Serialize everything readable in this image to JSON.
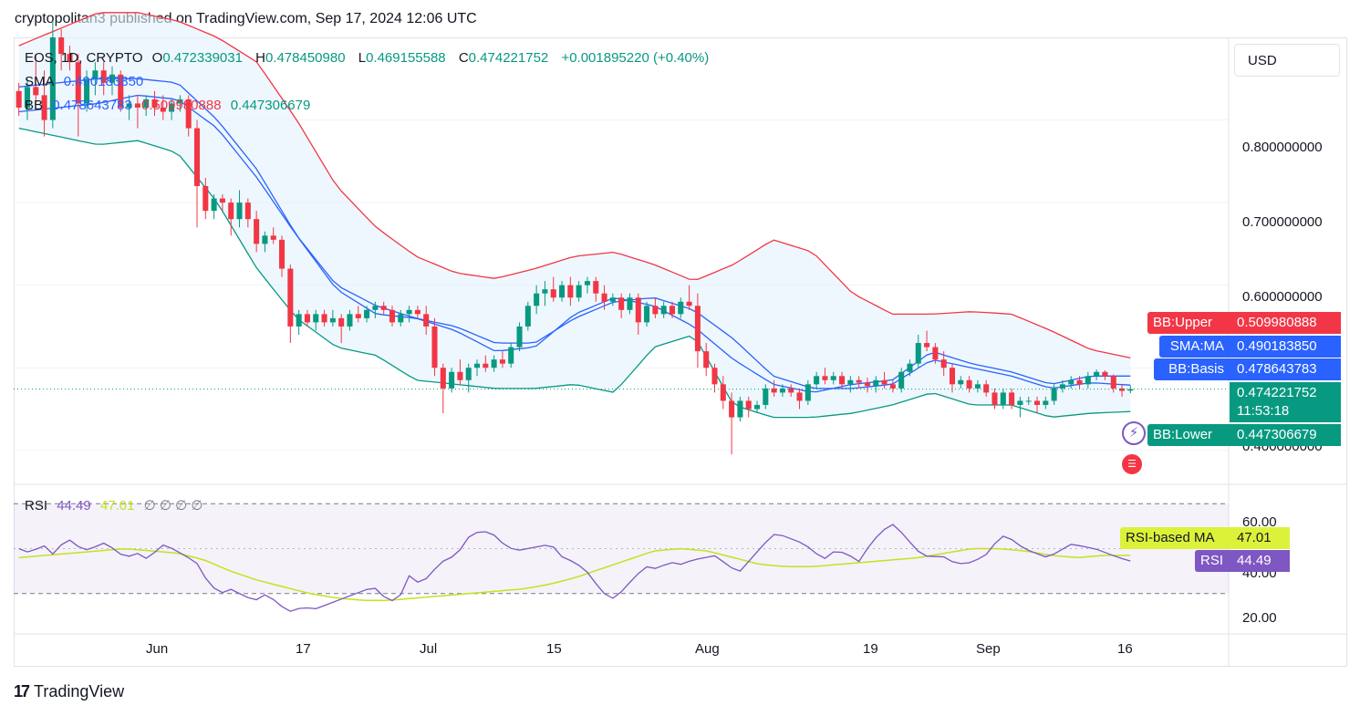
{
  "header": {
    "publish_text": "cryptopolitan3 published on TradingView.com, Sep 17, 2024 12:06 UTC"
  },
  "legend": {
    "symbol": "EOS, 1D, CRYPTO",
    "o_label": "O",
    "o_value": "0.472339031",
    "h_label": "H",
    "h_value": "0.478450980",
    "l_label": "L",
    "l_value": "0.469155588",
    "c_label": "C",
    "c_value": "0.474221752",
    "change": "+0.001895220 (+0.40%)",
    "sma_label": "SMA",
    "sma_value": "0.490183850",
    "bb_label": "BB",
    "bb_basis": "0.478643783",
    "bb_upper": "0.509980888",
    "bb_lower": "0.447306679",
    "rsi_label": "RSI",
    "rsi_value": "44.49",
    "rsi_ma_value": "47.01",
    "rsi_extra": "∅ ∅ ∅ ∅"
  },
  "toolbar": {
    "currency": "USD"
  },
  "price_axis": [
    "0.800000000",
    "0.700000000",
    "0.600000000",
    "0.400000000"
  ],
  "rsi_axis": [
    "60.00",
    "40.00",
    "20.00"
  ],
  "time_axis": [
    "Jun",
    "17",
    "Jul",
    "15",
    "Aug",
    "19",
    "Sep",
    "16"
  ],
  "price_tags": {
    "bb_upper_label": "BB:Upper",
    "bb_upper_value": "0.509980888",
    "sma_label": "SMA:MA",
    "sma_value": "0.490183850",
    "bb_basis_label": "BB:Basis",
    "bb_basis_value": "0.478643783",
    "last_price": "0.474221752",
    "countdown": "11:53:18",
    "bb_lower_label": "BB:Lower",
    "bb_lower_value": "0.447306679",
    "rsi_ma_label": "RSI-based MA",
    "rsi_ma_value": "47.01",
    "rsi_label": "RSI",
    "rsi_value": "44.49"
  },
  "footer": {
    "brand": "TradingView"
  },
  "colors": {
    "up": "#089981",
    "down": "#f23645",
    "sma": "#2962ff",
    "bb_upper": "#f23645",
    "bb_lower": "#089981",
    "bb_fill": "#e3f2fd",
    "rsi": "#7e57c2",
    "rsi_ma": "#c4e31d"
  },
  "chart_data": {
    "type": "candlestick",
    "symbol": "EOS",
    "timeframe": "1D",
    "ylim": [
      0.36,
      0.9
    ],
    "candles": [
      {
        "o": 0.835,
        "h": 0.845,
        "l": 0.805,
        "c": 0.815
      },
      {
        "o": 0.815,
        "h": 0.85,
        "l": 0.8,
        "c": 0.84
      },
      {
        "o": 0.84,
        "h": 0.88,
        "l": 0.82,
        "c": 0.83
      },
      {
        "o": 0.83,
        "h": 0.86,
        "l": 0.78,
        "c": 0.8
      },
      {
        "o": 0.8,
        "h": 0.92,
        "l": 0.79,
        "c": 0.9
      },
      {
        "o": 0.9,
        "h": 0.91,
        "l": 0.86,
        "c": 0.88
      },
      {
        "o": 0.88,
        "h": 0.89,
        "l": 0.86,
        "c": 0.87
      },
      {
        "o": 0.87,
        "h": 0.88,
        "l": 0.78,
        "c": 0.82
      },
      {
        "o": 0.82,
        "h": 0.86,
        "l": 0.81,
        "c": 0.85
      },
      {
        "o": 0.85,
        "h": 0.87,
        "l": 0.83,
        "c": 0.86
      },
      {
        "o": 0.86,
        "h": 0.87,
        "l": 0.83,
        "c": 0.845
      },
      {
        "o": 0.845,
        "h": 0.865,
        "l": 0.83,
        "c": 0.855
      },
      {
        "o": 0.855,
        "h": 0.86,
        "l": 0.81,
        "c": 0.815
      },
      {
        "o": 0.815,
        "h": 0.83,
        "l": 0.8,
        "c": 0.82
      },
      {
        "o": 0.82,
        "h": 0.83,
        "l": 0.79,
        "c": 0.815
      },
      {
        "o": 0.815,
        "h": 0.83,
        "l": 0.805,
        "c": 0.825
      },
      {
        "o": 0.825,
        "h": 0.835,
        "l": 0.805,
        "c": 0.815
      },
      {
        "o": 0.815,
        "h": 0.83,
        "l": 0.8,
        "c": 0.81
      },
      {
        "o": 0.81,
        "h": 0.825,
        "l": 0.8,
        "c": 0.82
      },
      {
        "o": 0.82,
        "h": 0.83,
        "l": 0.81,
        "c": 0.825
      },
      {
        "o": 0.825,
        "h": 0.83,
        "l": 0.78,
        "c": 0.79
      },
      {
        "o": 0.79,
        "h": 0.8,
        "l": 0.67,
        "c": 0.72
      },
      {
        "o": 0.72,
        "h": 0.73,
        "l": 0.68,
        "c": 0.69
      },
      {
        "o": 0.69,
        "h": 0.71,
        "l": 0.68,
        "c": 0.705
      },
      {
        "o": 0.705,
        "h": 0.71,
        "l": 0.69,
        "c": 0.7
      },
      {
        "o": 0.7,
        "h": 0.705,
        "l": 0.66,
        "c": 0.68
      },
      {
        "o": 0.68,
        "h": 0.715,
        "l": 0.67,
        "c": 0.7
      },
      {
        "o": 0.7,
        "h": 0.705,
        "l": 0.67,
        "c": 0.68
      },
      {
        "o": 0.68,
        "h": 0.69,
        "l": 0.64,
        "c": 0.65
      },
      {
        "o": 0.65,
        "h": 0.665,
        "l": 0.64,
        "c": 0.66
      },
      {
        "o": 0.66,
        "h": 0.67,
        "l": 0.65,
        "c": 0.655
      },
      {
        "o": 0.655,
        "h": 0.66,
        "l": 0.61,
        "c": 0.62
      },
      {
        "o": 0.62,
        "h": 0.625,
        "l": 0.53,
        "c": 0.55
      },
      {
        "o": 0.55,
        "h": 0.57,
        "l": 0.54,
        "c": 0.565
      },
      {
        "o": 0.565,
        "h": 0.57,
        "l": 0.55,
        "c": 0.555
      },
      {
        "o": 0.555,
        "h": 0.57,
        "l": 0.545,
        "c": 0.565
      },
      {
        "o": 0.565,
        "h": 0.57,
        "l": 0.55,
        "c": 0.555
      },
      {
        "o": 0.555,
        "h": 0.57,
        "l": 0.55,
        "c": 0.56
      },
      {
        "o": 0.56,
        "h": 0.565,
        "l": 0.53,
        "c": 0.55
      },
      {
        "o": 0.55,
        "h": 0.57,
        "l": 0.545,
        "c": 0.565
      },
      {
        "o": 0.565,
        "h": 0.575,
        "l": 0.555,
        "c": 0.56
      },
      {
        "o": 0.56,
        "h": 0.575,
        "l": 0.555,
        "c": 0.57
      },
      {
        "o": 0.57,
        "h": 0.58,
        "l": 0.56,
        "c": 0.575
      },
      {
        "o": 0.575,
        "h": 0.58,
        "l": 0.565,
        "c": 0.57
      },
      {
        "o": 0.57,
        "h": 0.575,
        "l": 0.55,
        "c": 0.555
      },
      {
        "o": 0.555,
        "h": 0.57,
        "l": 0.55,
        "c": 0.565
      },
      {
        "o": 0.565,
        "h": 0.575,
        "l": 0.555,
        "c": 0.57
      },
      {
        "o": 0.57,
        "h": 0.575,
        "l": 0.56,
        "c": 0.565
      },
      {
        "o": 0.565,
        "h": 0.575,
        "l": 0.54,
        "c": 0.55
      },
      {
        "o": 0.55,
        "h": 0.56,
        "l": 0.49,
        "c": 0.5
      },
      {
        "o": 0.5,
        "h": 0.505,
        "l": 0.445,
        "c": 0.475
      },
      {
        "o": 0.475,
        "h": 0.5,
        "l": 0.47,
        "c": 0.495
      },
      {
        "o": 0.495,
        "h": 0.51,
        "l": 0.48,
        "c": 0.485
      },
      {
        "o": 0.485,
        "h": 0.505,
        "l": 0.47,
        "c": 0.5
      },
      {
        "o": 0.5,
        "h": 0.51,
        "l": 0.49,
        "c": 0.505
      },
      {
        "o": 0.505,
        "h": 0.515,
        "l": 0.495,
        "c": 0.5
      },
      {
        "o": 0.5,
        "h": 0.515,
        "l": 0.495,
        "c": 0.51
      },
      {
        "o": 0.51,
        "h": 0.52,
        "l": 0.5,
        "c": 0.505
      },
      {
        "o": 0.505,
        "h": 0.53,
        "l": 0.5,
        "c": 0.525
      },
      {
        "o": 0.525,
        "h": 0.555,
        "l": 0.52,
        "c": 0.55
      },
      {
        "o": 0.55,
        "h": 0.58,
        "l": 0.545,
        "c": 0.575
      },
      {
        "o": 0.575,
        "h": 0.6,
        "l": 0.565,
        "c": 0.59
      },
      {
        "o": 0.59,
        "h": 0.605,
        "l": 0.575,
        "c": 0.595
      },
      {
        "o": 0.595,
        "h": 0.61,
        "l": 0.58,
        "c": 0.585
      },
      {
        "o": 0.585,
        "h": 0.605,
        "l": 0.58,
        "c": 0.6
      },
      {
        "o": 0.6,
        "h": 0.61,
        "l": 0.575,
        "c": 0.585
      },
      {
        "o": 0.585,
        "h": 0.605,
        "l": 0.58,
        "c": 0.6
      },
      {
        "o": 0.6,
        "h": 0.61,
        "l": 0.59,
        "c": 0.605
      },
      {
        "o": 0.605,
        "h": 0.61,
        "l": 0.58,
        "c": 0.59
      },
      {
        "o": 0.59,
        "h": 0.6,
        "l": 0.57,
        "c": 0.58
      },
      {
        "o": 0.58,
        "h": 0.59,
        "l": 0.575,
        "c": 0.585
      },
      {
        "o": 0.585,
        "h": 0.59,
        "l": 0.56,
        "c": 0.57
      },
      {
        "o": 0.57,
        "h": 0.59,
        "l": 0.565,
        "c": 0.585
      },
      {
        "o": 0.585,
        "h": 0.59,
        "l": 0.54,
        "c": 0.555
      },
      {
        "o": 0.555,
        "h": 0.58,
        "l": 0.55,
        "c": 0.575
      },
      {
        "o": 0.575,
        "h": 0.585,
        "l": 0.56,
        "c": 0.565
      },
      {
        "o": 0.565,
        "h": 0.58,
        "l": 0.56,
        "c": 0.575
      },
      {
        "o": 0.575,
        "h": 0.58,
        "l": 0.56,
        "c": 0.565
      },
      {
        "o": 0.565,
        "h": 0.585,
        "l": 0.56,
        "c": 0.58
      },
      {
        "o": 0.58,
        "h": 0.6,
        "l": 0.57,
        "c": 0.575
      },
      {
        "o": 0.575,
        "h": 0.59,
        "l": 0.5,
        "c": 0.52
      },
      {
        "o": 0.52,
        "h": 0.53,
        "l": 0.49,
        "c": 0.5
      },
      {
        "o": 0.5,
        "h": 0.505,
        "l": 0.47,
        "c": 0.48
      },
      {
        "o": 0.48,
        "h": 0.49,
        "l": 0.45,
        "c": 0.46
      },
      {
        "o": 0.46,
        "h": 0.47,
        "l": 0.395,
        "c": 0.44
      },
      {
        "o": 0.44,
        "h": 0.465,
        "l": 0.435,
        "c": 0.46
      },
      {
        "o": 0.46,
        "h": 0.465,
        "l": 0.44,
        "c": 0.45
      },
      {
        "o": 0.45,
        "h": 0.46,
        "l": 0.445,
        "c": 0.455
      },
      {
        "o": 0.455,
        "h": 0.48,
        "l": 0.45,
        "c": 0.475
      },
      {
        "o": 0.475,
        "h": 0.485,
        "l": 0.465,
        "c": 0.47
      },
      {
        "o": 0.47,
        "h": 0.48,
        "l": 0.465,
        "c": 0.475
      },
      {
        "o": 0.475,
        "h": 0.48,
        "l": 0.465,
        "c": 0.47
      },
      {
        "o": 0.47,
        "h": 0.475,
        "l": 0.45,
        "c": 0.46
      },
      {
        "o": 0.46,
        "h": 0.485,
        "l": 0.455,
        "c": 0.48
      },
      {
        "o": 0.48,
        "h": 0.495,
        "l": 0.475,
        "c": 0.49
      },
      {
        "o": 0.49,
        "h": 0.5,
        "l": 0.48,
        "c": 0.485
      },
      {
        "o": 0.485,
        "h": 0.495,
        "l": 0.48,
        "c": 0.49
      },
      {
        "o": 0.49,
        "h": 0.495,
        "l": 0.475,
        "c": 0.48
      },
      {
        "o": 0.48,
        "h": 0.49,
        "l": 0.47,
        "c": 0.485
      },
      {
        "o": 0.485,
        "h": 0.49,
        "l": 0.475,
        "c": 0.482
      },
      {
        "o": 0.482,
        "h": 0.488,
        "l": 0.47,
        "c": 0.478
      },
      {
        "o": 0.478,
        "h": 0.49,
        "l": 0.47,
        "c": 0.485
      },
      {
        "o": 0.485,
        "h": 0.495,
        "l": 0.475,
        "c": 0.48
      },
      {
        "o": 0.48,
        "h": 0.485,
        "l": 0.47,
        "c": 0.475
      },
      {
        "o": 0.475,
        "h": 0.5,
        "l": 0.47,
        "c": 0.495
      },
      {
        "o": 0.495,
        "h": 0.51,
        "l": 0.49,
        "c": 0.505
      },
      {
        "o": 0.505,
        "h": 0.54,
        "l": 0.5,
        "c": 0.53
      },
      {
        "o": 0.53,
        "h": 0.545,
        "l": 0.52,
        "c": 0.525
      },
      {
        "o": 0.525,
        "h": 0.53,
        "l": 0.505,
        "c": 0.51
      },
      {
        "o": 0.51,
        "h": 0.52,
        "l": 0.49,
        "c": 0.5
      },
      {
        "o": 0.5,
        "h": 0.505,
        "l": 0.47,
        "c": 0.48
      },
      {
        "o": 0.48,
        "h": 0.49,
        "l": 0.475,
        "c": 0.485
      },
      {
        "o": 0.485,
        "h": 0.49,
        "l": 0.47,
        "c": 0.475
      },
      {
        "o": 0.475,
        "h": 0.485,
        "l": 0.47,
        "c": 0.48
      },
      {
        "o": 0.48,
        "h": 0.485,
        "l": 0.465,
        "c": 0.47
      },
      {
        "o": 0.47,
        "h": 0.475,
        "l": 0.45,
        "c": 0.455
      },
      {
        "o": 0.455,
        "h": 0.475,
        "l": 0.45,
        "c": 0.47
      },
      {
        "o": 0.47,
        "h": 0.475,
        "l": 0.45,
        "c": 0.455
      },
      {
        "o": 0.455,
        "h": 0.465,
        "l": 0.44,
        "c": 0.46
      },
      {
        "o": 0.46,
        "h": 0.465,
        "l": 0.455,
        "c": 0.46
      },
      {
        "o": 0.46,
        "h": 0.465,
        "l": 0.445,
        "c": 0.455
      },
      {
        "o": 0.455,
        "h": 0.465,
        "l": 0.45,
        "c": 0.46
      },
      {
        "o": 0.46,
        "h": 0.48,
        "l": 0.455,
        "c": 0.475
      },
      {
        "o": 0.475,
        "h": 0.485,
        "l": 0.47,
        "c": 0.48
      },
      {
        "o": 0.48,
        "h": 0.49,
        "l": 0.475,
        "c": 0.485
      },
      {
        "o": 0.485,
        "h": 0.49,
        "l": 0.475,
        "c": 0.48
      },
      {
        "o": 0.48,
        "h": 0.495,
        "l": 0.475,
        "c": 0.49
      },
      {
        "o": 0.49,
        "h": 0.498,
        "l": 0.485,
        "c": 0.495
      },
      {
        "o": 0.495,
        "h": 0.497,
        "l": 0.485,
        "c": 0.49
      },
      {
        "o": 0.49,
        "h": 0.492,
        "l": 0.47,
        "c": 0.475
      },
      {
        "o": 0.475,
        "h": 0.48,
        "l": 0.465,
        "c": 0.472
      },
      {
        "o": 0.472339031,
        "h": 0.47845098,
        "l": 0.469155588,
        "c": 0.474221752
      }
    ],
    "bb_upper": [
      0.89,
      0.91,
      0.93,
      0.93,
      0.92,
      0.9,
      0.87,
      0.8,
      0.72,
      0.67,
      0.635,
      0.615,
      0.608,
      0.62,
      0.635,
      0.64,
      0.625,
      0.605,
      0.625,
      0.655,
      0.64,
      0.59,
      0.565,
      0.565,
      0.568,
      0.565,
      0.545,
      0.522,
      0.512
    ],
    "bb_lower": [
      0.79,
      0.78,
      0.77,
      0.775,
      0.76,
      0.7,
      0.62,
      0.56,
      0.525,
      0.515,
      0.485,
      0.48,
      0.475,
      0.475,
      0.48,
      0.47,
      0.525,
      0.54,
      0.455,
      0.44,
      0.44,
      0.445,
      0.455,
      0.47,
      0.455,
      0.455,
      0.44,
      0.445,
      0.447
    ],
    "bb_basis": [
      0.84,
      0.845,
      0.85,
      0.85,
      0.845,
      0.8,
      0.74,
      0.66,
      0.6,
      0.575,
      0.56,
      0.55,
      0.53,
      0.53,
      0.56,
      0.58,
      0.585,
      0.57,
      0.535,
      0.49,
      0.475,
      0.475,
      0.48,
      0.51,
      0.5,
      0.49,
      0.475,
      0.482,
      0.479
    ],
    "sma": [
      0.81,
      0.815,
      0.82,
      0.83,
      0.825,
      0.79,
      0.73,
      0.66,
      0.595,
      0.565,
      0.56,
      0.545,
      0.52,
      0.525,
      0.565,
      0.585,
      0.575,
      0.55,
      0.51,
      0.48,
      0.47,
      0.48,
      0.485,
      0.52,
      0.505,
      0.495,
      0.48,
      0.49,
      0.49
    ],
    "rsi": [
      50,
      48,
      52,
      47,
      55,
      51,
      49,
      53,
      50,
      46,
      48,
      45,
      52,
      50,
      47,
      44,
      35,
      30,
      32,
      29,
      27,
      30,
      25,
      22,
      24,
      23,
      25,
      27,
      29,
      31,
      33,
      28,
      26,
      38,
      34,
      40,
      45,
      47,
      55,
      58,
      57,
      52,
      49,
      50,
      51,
      52,
      46,
      44,
      40,
      33,
      27,
      31,
      37,
      42,
      41,
      44,
      43,
      45,
      46,
      47,
      42,
      40,
      46,
      52,
      57,
      55,
      53,
      50,
      45,
      49,
      48,
      44,
      52,
      58,
      61,
      55,
      49,
      46,
      47,
      44,
      43,
      45,
      48,
      56,
      54,
      50,
      48,
      46,
      49,
      52,
      51,
      50,
      48,
      46,
      44.49
    ],
    "rsi_ma": [
      46,
      47,
      48,
      49,
      50,
      49,
      48,
      45,
      40,
      36,
      33,
      30,
      28,
      27,
      27,
      28,
      29,
      30,
      31,
      32,
      34,
      37,
      41,
      45,
      49,
      50,
      49,
      46,
      43,
      42,
      42,
      43,
      44,
      45,
      46,
      48,
      50,
      50,
      49,
      47,
      46,
      47,
      47.01
    ],
    "rsi_range": [
      10,
      75
    ],
    "rsi_bands": [
      30,
      70
    ]
  }
}
